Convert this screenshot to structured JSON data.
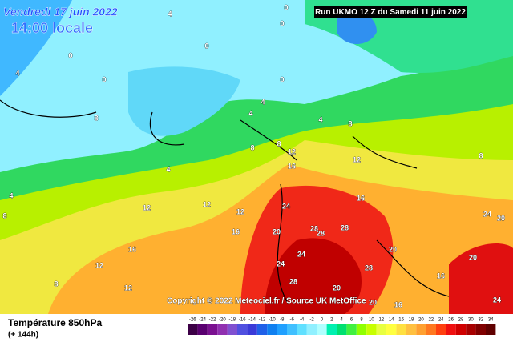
{
  "header": {
    "date": "Vendredi 17 juin 2022",
    "time": "14:00 locale",
    "run": "Run UKMO 12 Z du Samedi 11 juin 2022"
  },
  "copyright": "Copyright © 2022 Meteociel.fr / Source UK MetOffice",
  "footer": {
    "title": "Température 850hPa",
    "lead": "(+ 144h)"
  },
  "scale": {
    "labels": [
      -26,
      -24,
      -22,
      -20,
      -18,
      -16,
      -14,
      -12,
      -10,
      -8,
      -6,
      -4,
      -2,
      0,
      2,
      4,
      6,
      8,
      10,
      12,
      14,
      16,
      18,
      20,
      22,
      24,
      26,
      28,
      30,
      32,
      34
    ],
    "colors": [
      "#3c0046",
      "#5a0070",
      "#7a1090",
      "#9030b0",
      "#8050d0",
      "#5050e0",
      "#3a3ad8",
      "#2060e8",
      "#1080f0",
      "#20a0ff",
      "#40c0ff",
      "#60e0ff",
      "#90f0ff",
      "#b0ffff",
      "#00f0b0",
      "#00e070",
      "#40f040",
      "#90ff00",
      "#c8ff00",
      "#e8ff40",
      "#ffff40",
      "#ffe040",
      "#ffc040",
      "#ffa030",
      "#ff7820",
      "#ff4010",
      "#f01010",
      "#d00000",
      "#a80000",
      "#800000",
      "#600000"
    ]
  },
  "contour_labels": [
    4,
    0,
    0,
    0,
    0,
    4,
    0,
    0,
    4,
    4,
    8,
    4,
    8,
    8,
    8,
    4,
    12,
    16,
    12,
    8,
    4,
    8,
    12,
    12,
    12,
    24,
    16,
    16,
    20,
    28,
    28,
    28,
    24,
    16,
    12,
    24,
    28,
    20,
    20,
    28,
    16,
    12,
    8,
    20,
    16,
    24,
    20,
    24,
    20
  ]
}
